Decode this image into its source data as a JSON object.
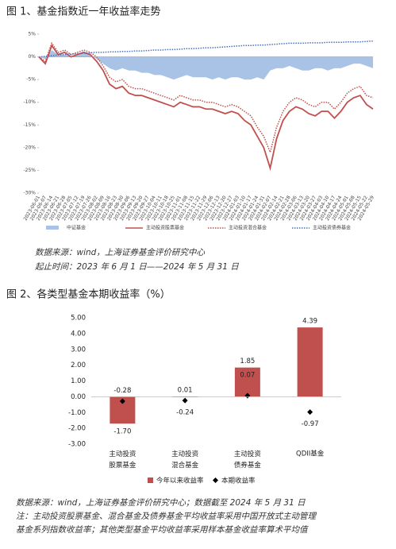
{
  "chart_data": [
    {
      "type": "line",
      "title": "图 1、基金指数近一年收益率走势",
      "categories": [
        "2023-06-01",
        "2023-06-07",
        "2023-06-14",
        "2023-06-21",
        "2023-06-28",
        "2023-07-05",
        "2023-07-12",
        "2023-07-19",
        "2023-07-26",
        "2023-08-02",
        "2023-08-09",
        "2023-08-16",
        "2023-08-23",
        "2023-08-30",
        "2023-09-06",
        "2023-09-13",
        "2023-09-20",
        "2023-09-27",
        "2023-10-04",
        "2023-10-11",
        "2023-10-18",
        "2023-10-25",
        "2023-11-01",
        "2023-11-08",
        "2023-11-15",
        "2023-11-22",
        "2023-11-29",
        "2023-12-06",
        "2023-12-13",
        "2023-12-20",
        "2023-12-27",
        "2024-01-03",
        "2024-01-10",
        "2024-01-17",
        "2024-01-24",
        "2024-01-31",
        "2024-02-07",
        "2024-02-14",
        "2024-02-21",
        "2024-02-28",
        "2024-03-06",
        "2024-03-13",
        "2024-03-20",
        "2024-03-27",
        "2024-04-03",
        "2024-04-10",
        "2024-04-17",
        "2024-04-24",
        "2024-05-01",
        "2024-05-08",
        "2024-05-15",
        "2024-05-22",
        "2024-05-29"
      ],
      "series": [
        {
          "name": "中证基金",
          "style": "area",
          "color": "#a9c3e6",
          "values": [
            0,
            -0.5,
            1.5,
            0.5,
            0.5,
            0.2,
            0.3,
            0.8,
            0.5,
            -0.5,
            -1.5,
            -2.5,
            -3,
            -2.5,
            -3,
            -3,
            -3.5,
            -3.5,
            -4,
            -4,
            -4.5,
            -5,
            -4.5,
            -4,
            -4.5,
            -4.5,
            -4.5,
            -5,
            -4.5,
            -5,
            -4.5,
            -4.5,
            -5,
            -5,
            -4.5,
            -5,
            -3,
            -2.5,
            -2.5,
            -2,
            -2.5,
            -3,
            -3,
            -2.5,
            -2.5,
            -3,
            -2.5,
            -2.5,
            -2,
            -1.5,
            -1.5,
            -2,
            -2.5
          ]
        },
        {
          "name": "主动投资股票基金",
          "style": "solid",
          "color": "#c0504d",
          "values": [
            0,
            -1.5,
            2.5,
            0.5,
            1,
            0,
            0.5,
            1,
            0.5,
            -1,
            -3,
            -6,
            -7,
            -6.5,
            -8,
            -8.5,
            -8.5,
            -9,
            -9.5,
            -10,
            -10.5,
            -11,
            -10,
            -10.5,
            -11,
            -11,
            -11.5,
            -11.5,
            -12,
            -12.5,
            -12,
            -12.5,
            -14,
            -15,
            -17.5,
            -20,
            -24.5,
            -18,
            -14,
            -12,
            -11,
            -11.5,
            -12.5,
            -13,
            -12,
            -12,
            -13.5,
            -12,
            -10,
            -9,
            -8.5,
            -10.5,
            -11.5
          ]
        },
        {
          "name": "主动投资混合基金",
          "style": "dotted",
          "color": "#c0504d",
          "values": [
            0,
            -1,
            3,
            1,
            1.5,
            0.5,
            1,
            1.5,
            1,
            0,
            -2,
            -4.5,
            -5.5,
            -5,
            -6.5,
            -7,
            -7,
            -7.5,
            -8,
            -8.5,
            -9,
            -9.5,
            -8.5,
            -9,
            -9.5,
            -9.5,
            -10,
            -10,
            -10.5,
            -11,
            -10.5,
            -11,
            -12,
            -13,
            -15.5,
            -17.5,
            -21,
            -15.5,
            -12,
            -10,
            -9,
            -9.5,
            -10.5,
            -11,
            -10,
            -10,
            -11.5,
            -10,
            -8,
            -7,
            -6.5,
            -8.5,
            -9
          ]
        },
        {
          "name": "主动投资债券基金",
          "style": "dotted",
          "color": "#4472c4",
          "values": [
            0,
            0.1,
            0.3,
            0.4,
            0.5,
            0.6,
            0.7,
            0.8,
            0.9,
            1,
            1,
            1.1,
            1.1,
            1.2,
            1.2,
            1.3,
            1.3,
            1.4,
            1.5,
            1.5,
            1.6,
            1.6,
            1.7,
            1.8,
            1.8,
            1.9,
            2,
            2,
            2.1,
            2.2,
            2.3,
            2.4,
            2.5,
            2.5,
            2.6,
            2.6,
            2.7,
            2.8,
            2.9,
            3,
            3,
            3,
            3.1,
            3.1,
            3.1,
            3.2,
            3.2,
            3.2,
            3.3,
            3.3,
            3.3,
            3.4,
            3.5
          ]
        }
      ],
      "ylim": [
        -30,
        5
      ],
      "yticks": [
        {
          "value": 5,
          "label": "5%"
        },
        {
          "value": 0,
          "label": "0%"
        },
        {
          "value": -5,
          "label": "-5%"
        },
        {
          "value": -10,
          "label": "-10%"
        },
        {
          "value": -15,
          "label": "-15%"
        },
        {
          "value": -20,
          "label": "-20%"
        },
        {
          "value": -25,
          "label": "-25%"
        },
        {
          "value": -30,
          "label": "-30%"
        }
      ],
      "notes": [
        "数据来源：wind，上海证券基金评价研究中心",
        "起止时间：2023 年 6 月 1 日——2024 年 5 月 31 日"
      ]
    },
    {
      "type": "bar",
      "title": "图 2、各类型基金本期收益率（%）",
      "categories": [
        "主动投资股票基金",
        "主动投资混合基金",
        "主动投资债券基金",
        "QDII基金"
      ],
      "series": [
        {
          "name": "今年以来收益率",
          "mark": "bar",
          "color": "#c0504d",
          "values": [
            -1.7,
            0.01,
            1.85,
            4.39
          ],
          "value_labels": [
            "-1.70",
            "0.01",
            "1.85",
            "4.39"
          ]
        },
        {
          "name": "本期收益率",
          "mark": "diamond",
          "color": "#000000",
          "values": [
            -0.28,
            -0.24,
            0.07,
            -0.97
          ],
          "value_labels": [
            "-0.28",
            "-0.24",
            "0.07",
            "-0.97"
          ]
        }
      ],
      "ylim": [
        -3,
        5
      ],
      "yticks": [
        {
          "value": 5,
          "label": "5.00"
        },
        {
          "value": 4,
          "label": "4.00"
        },
        {
          "value": 3,
          "label": "3.00"
        },
        {
          "value": 2,
          "label": "2.00"
        },
        {
          "value": 1,
          "label": "1.00"
        },
        {
          "value": 0,
          "label": "0.00"
        },
        {
          "value": -1,
          "label": "-1.00"
        },
        {
          "value": -2,
          "label": "-2.00"
        },
        {
          "value": -3,
          "label": "-3.00"
        }
      ],
      "notes": [
        "数据来源：wind，上海证券基金评价研究中心；数据截至 2024 年 5 月 31 日",
        "注：主动投资股票基金、混合基金及债券基金平均收益率采用中国开放式主动管理",
        "基金系列指数收益率；其他类型基金平均收益率采用样本基金收益率算术平均值"
      ]
    }
  ]
}
